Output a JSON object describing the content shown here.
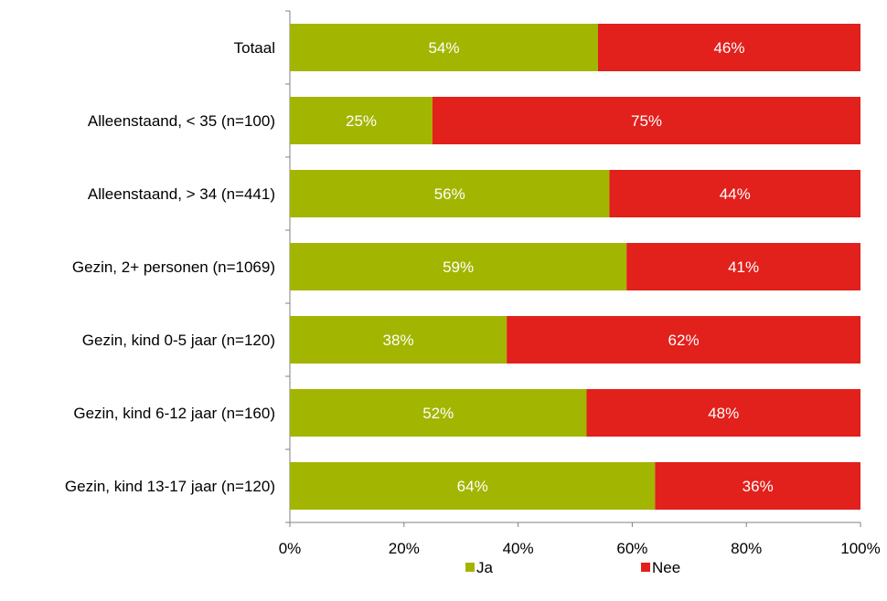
{
  "chart_data": {
    "type": "bar",
    "orientation": "horizontal",
    "stacked": true,
    "categories": [
      "Totaal",
      "Alleenstaand, < 35 (n=100)",
      "Alleenstaand, > 34 (n=441)",
      "Gezin, 2+ personen (n=1069)",
      "Gezin, kind 0-5 jaar (n=120)",
      "Gezin, kind 6-12 jaar (n=160)",
      "Gezin, kind 13-17 jaar (n=120)"
    ],
    "series": [
      {
        "name": "Ja",
        "color": "#a2b500",
        "values": [
          54,
          25,
          56,
          59,
          38,
          52,
          64
        ]
      },
      {
        "name": "Nee",
        "color": "#e2201c",
        "values": [
          46,
          75,
          44,
          41,
          62,
          48,
          36
        ]
      }
    ],
    "value_labels": [
      [
        "54%",
        "25%",
        "56%",
        "59%",
        "38%",
        "52%",
        "64%"
      ],
      [
        "46%",
        "75%",
        "44%",
        "41%",
        "62%",
        "48%",
        "36%"
      ]
    ],
    "xlim": [
      0,
      100
    ],
    "xticks": [
      0,
      20,
      40,
      60,
      80,
      100
    ],
    "xtick_labels": [
      "0%",
      "20%",
      "40%",
      "60%",
      "80%",
      "100%"
    ],
    "grid": false,
    "legend_position": "bottom"
  }
}
